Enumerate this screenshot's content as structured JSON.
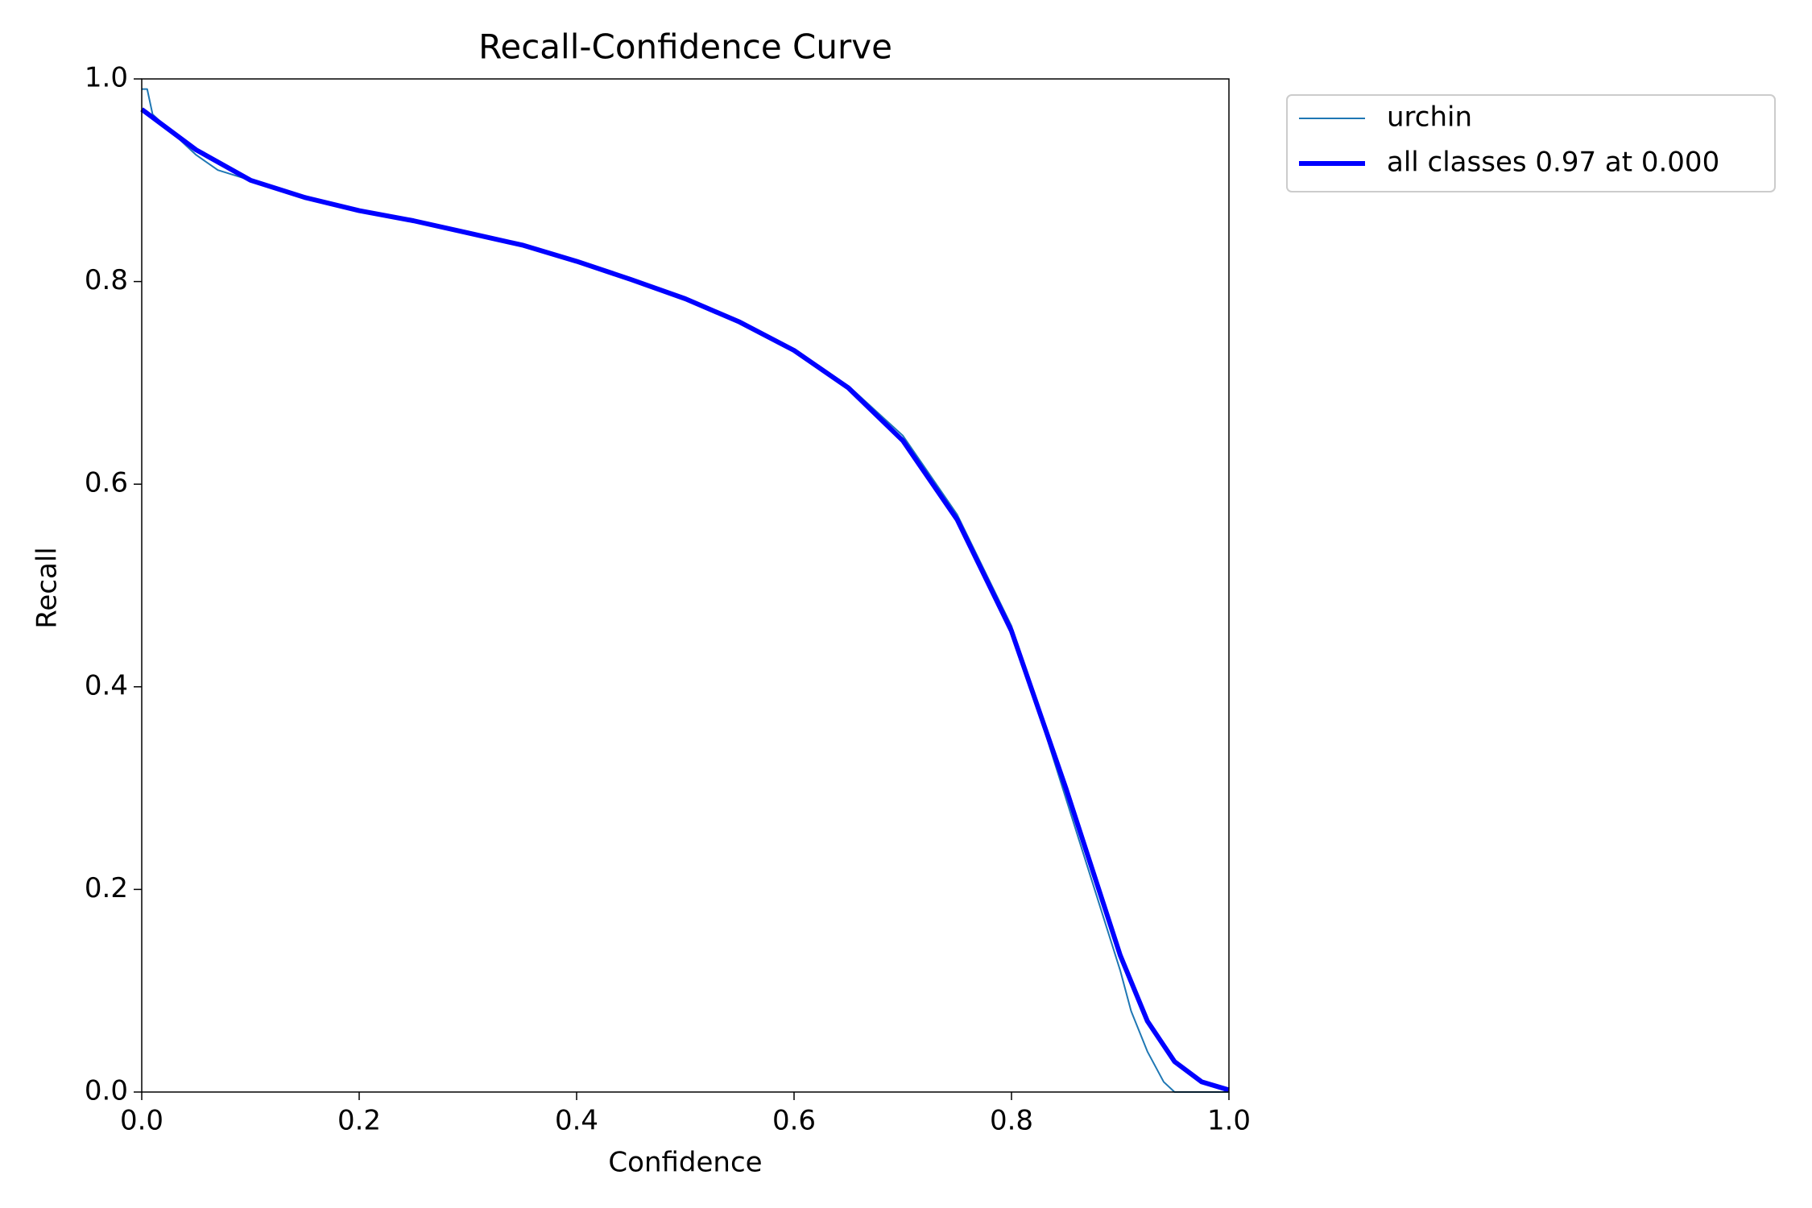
{
  "chart_data": {
    "type": "line",
    "title": "Recall-Confidence Curve",
    "x_label": "Confidence",
    "y_label": "Recall",
    "xlim": [
      0,
      1
    ],
    "ylim": [
      0,
      1
    ],
    "xticks": [
      {
        "value": 0,
        "label": "0.0"
      },
      0.2,
      0.4,
      0.6,
      0.8,
      {
        "value": 1,
        "label": "1.0"
      }
    ],
    "yticks": [
      {
        "value": 0,
        "label": "0.0"
      },
      0.2,
      0.4,
      0.6,
      0.8,
      {
        "value": 1,
        "label": "1.0"
      }
    ],
    "legend": "outside-upper-right",
    "series": [
      {
        "name": "urchin",
        "color": "#1f77b4",
        "width": 2,
        "x": [
          0,
          0.005,
          0.01,
          0.03,
          0.05,
          0.07,
          0.1,
          0.15,
          0.2,
          0.25,
          0.3,
          0.35,
          0.4,
          0.45,
          0.5,
          0.55,
          0.6,
          0.65,
          0.7,
          0.75,
          0.8,
          0.85,
          0.9,
          0.91,
          0.925,
          0.94,
          0.95,
          1.0
        ],
        "values": [
          0.99,
          0.99,
          0.965,
          0.945,
          0.925,
          0.91,
          0.9,
          0.883,
          0.87,
          0.86,
          0.848,
          0.836,
          0.82,
          0.802,
          0.783,
          0.76,
          0.733,
          0.697,
          0.648,
          0.57,
          0.46,
          0.29,
          0.12,
          0.08,
          0.04,
          0.01,
          0,
          0
        ]
      },
      {
        "name": "all classes 0.97 at 0.000",
        "color": "#0000ff",
        "width": 6,
        "x": [
          0,
          0.05,
          0.1,
          0.15,
          0.2,
          0.25,
          0.3,
          0.35,
          0.4,
          0.45,
          0.5,
          0.55,
          0.6,
          0.65,
          0.7,
          0.75,
          0.8,
          0.85,
          0.9,
          0.925,
          0.95,
          0.975,
          1.0
        ],
        "values": [
          0.97,
          0.93,
          0.9,
          0.883,
          0.87,
          0.86,
          0.848,
          0.836,
          0.82,
          0.802,
          0.783,
          0.76,
          0.732,
          0.695,
          0.643,
          0.565,
          0.455,
          0.3,
          0.135,
          0.07,
          0.03,
          0.01,
          0.002
        ]
      }
    ]
  }
}
